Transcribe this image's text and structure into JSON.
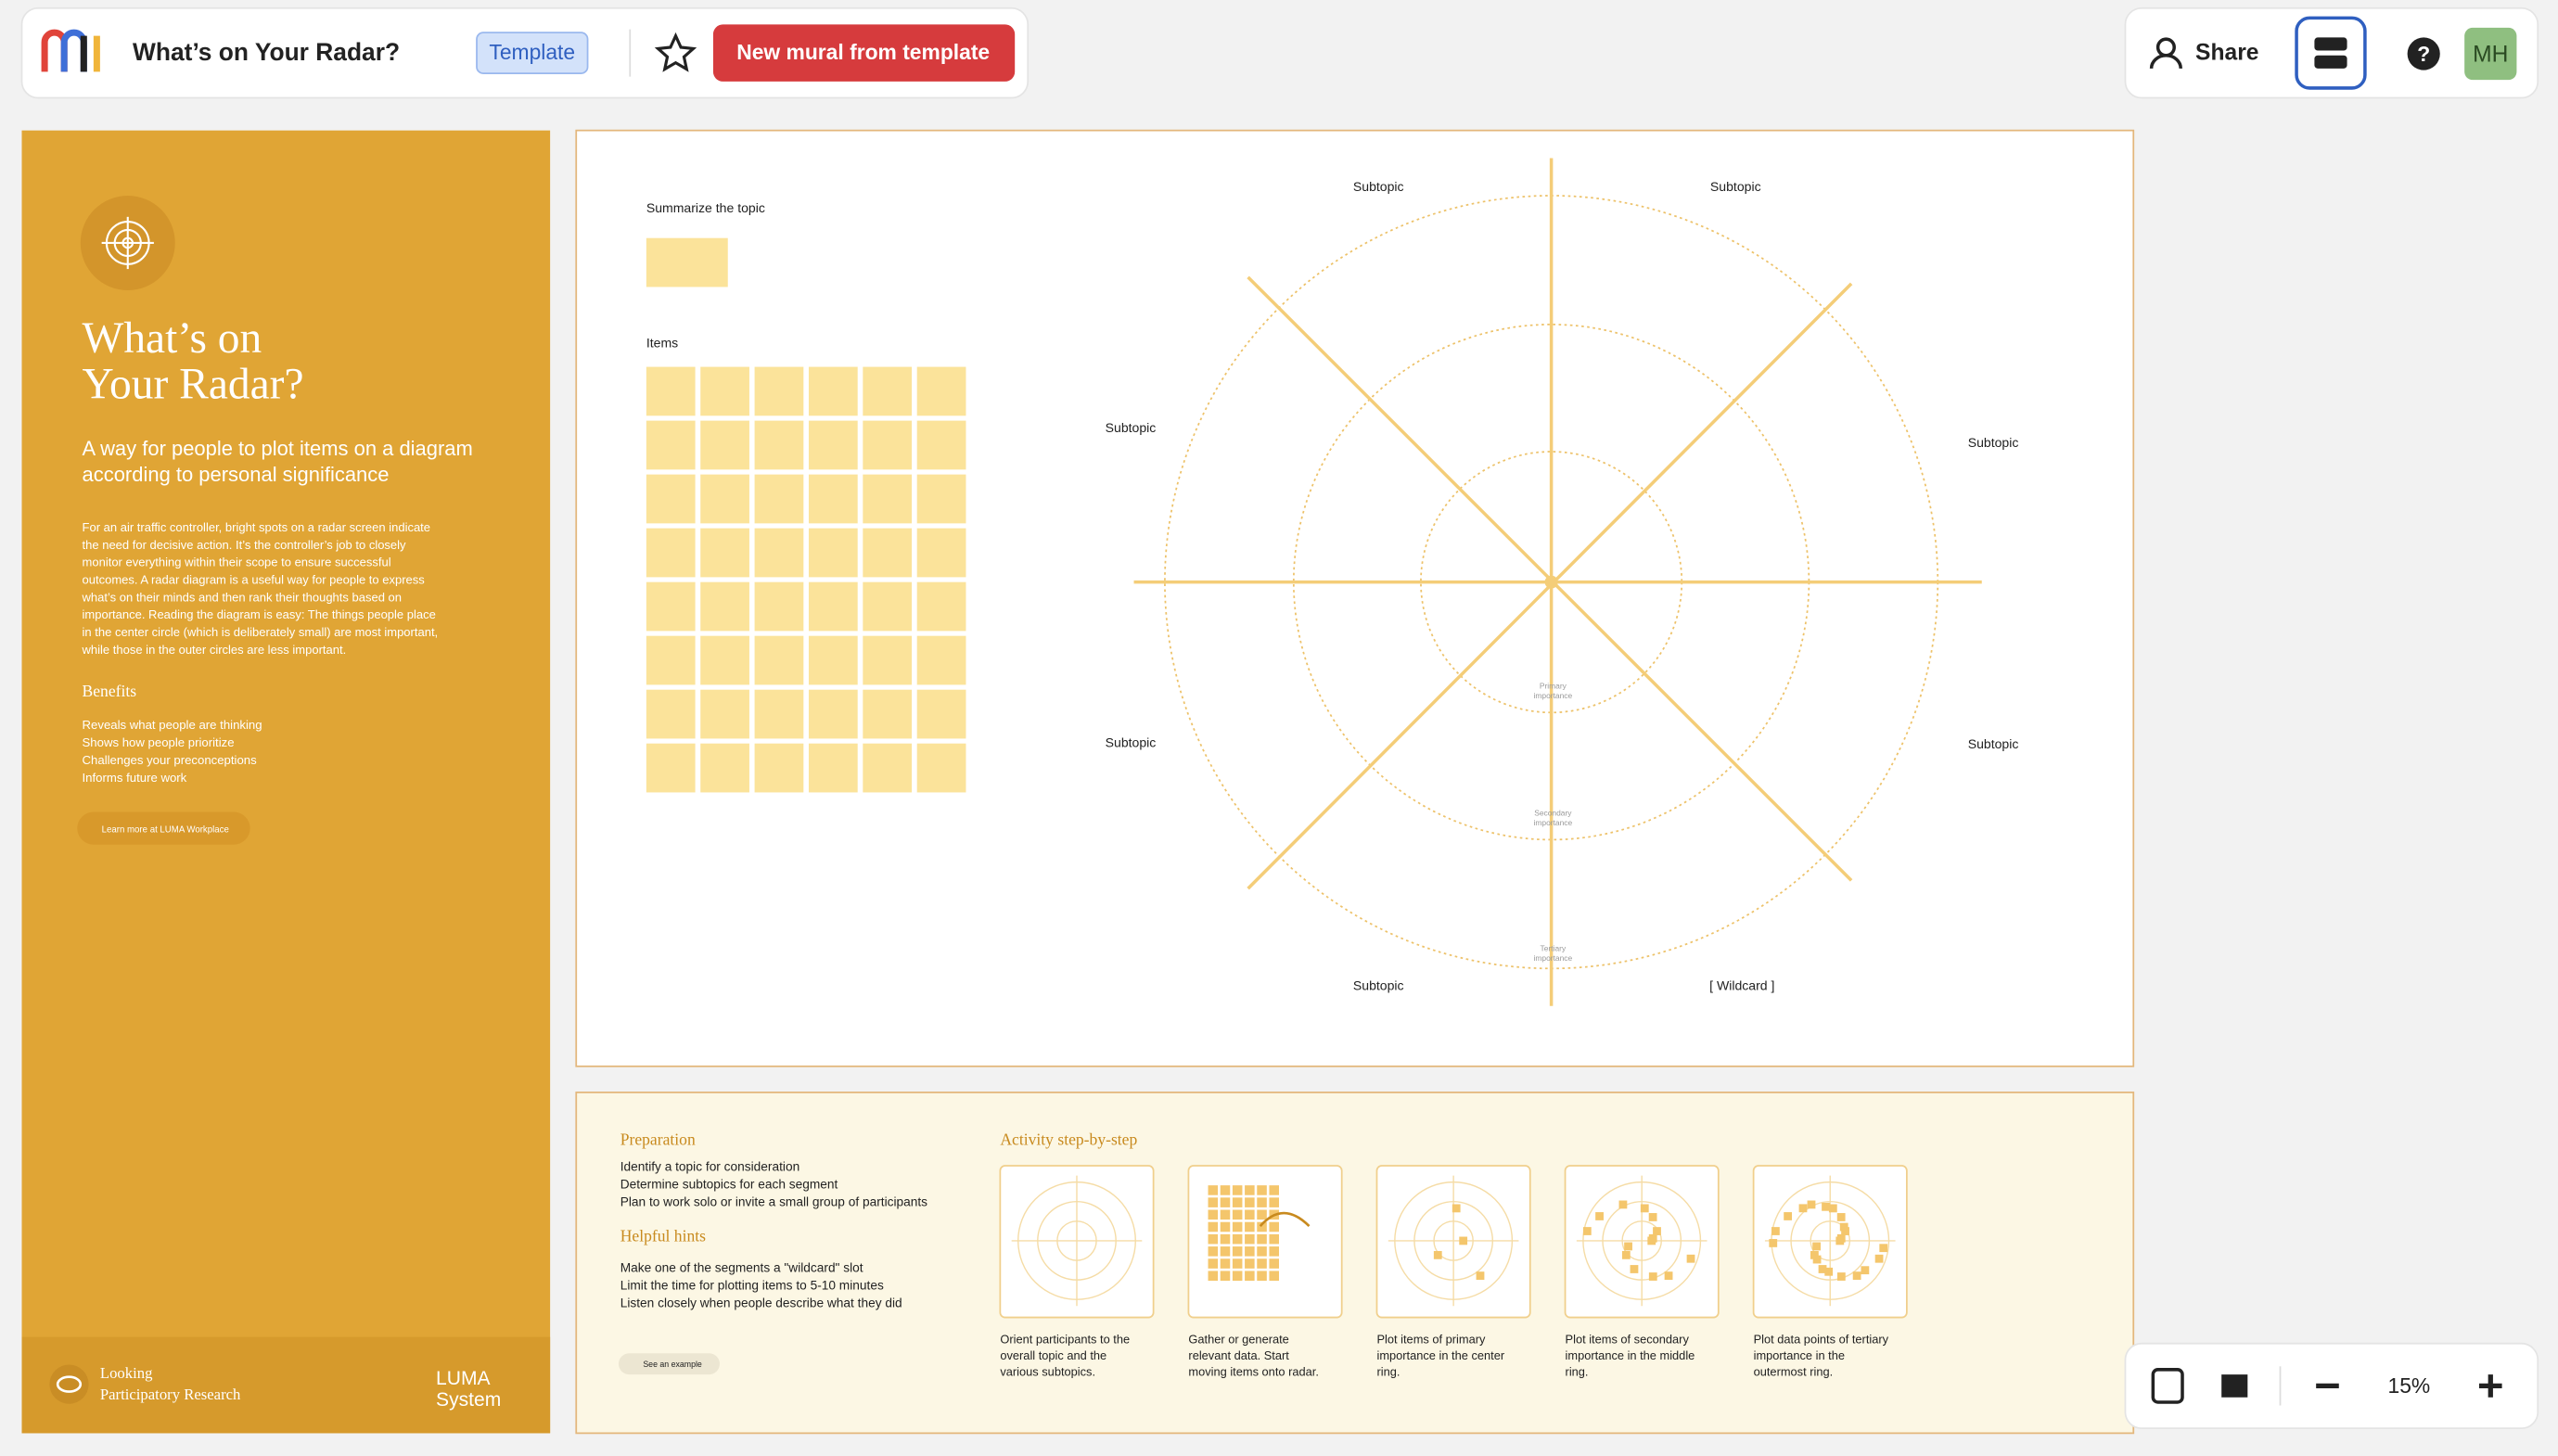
{
  "toolbar": {
    "title": "What’s on Your Radar?",
    "badge": "Template",
    "cta": "New mural from template",
    "share": "Share",
    "avatar": "MH",
    "zoom": "15%"
  },
  "sidebar": {
    "title_lines": [
      "What’s on",
      "Your Radar?"
    ],
    "subtitle_lines": [
      "A way for people to plot items on a diagram",
      "according to personal significance"
    ],
    "description_lines": [
      "For an air traffic controller, bright spots on a radar screen indicate",
      "the need for decisive action. It’s the controller’s job to closely",
      "monitor everything within their scope to ensure successful",
      "outcomes. A radar diagram is a useful way for people to express",
      "what’s on their minds and then rank their thoughts based on",
      "importance. Reading the diagram is easy: The things people place",
      "in the center circle (which is deliberately small) are most important,",
      "while those in the outer circles are less important."
    ],
    "benefits_heading": "Benefits",
    "benefits": [
      "Reveals what people are thinking",
      "Shows how people prioritize",
      "Challenges your preconceptions",
      "Informs future work"
    ],
    "link": "Learn more at LUMA Workplace",
    "footer_category": [
      "Looking",
      "Participatory Research"
    ],
    "brand": [
      "LUMA",
      "System"
    ]
  },
  "canvas": {
    "summarize_label": "Summarize the topic",
    "items_label": "Items",
    "subtopics": [
      "Subtopic",
      "Subtopic",
      "Subtopic",
      "Subtopic",
      "Subtopic",
      "Subtopic",
      "Subtopic",
      "[ Wildcard ]"
    ],
    "rings": [
      [
        "Primary",
        "importance"
      ],
      [
        "Secondary",
        "importance"
      ],
      [
        "Tertiary",
        "importance"
      ]
    ]
  },
  "instructions": {
    "preparation_heading": "Preparation",
    "preparation": [
      "Identify a topic for consideration",
      "Determine subtopics for each segment",
      "Plan to work solo or invite a small group of participants"
    ],
    "hints_heading": "Helpful hints",
    "hints": [
      "Make one of the segments a \"wildcard\" slot",
      "Limit the time for plotting items to 5-10 minutes",
      "Listen closely when people describe what they did"
    ],
    "example_button": "See an example",
    "activity_heading": "Activity step-by-step",
    "steps": [
      [
        "Orient participants to the",
        "overall topic and the",
        "various subtopics."
      ],
      [
        "Gather or generate",
        "relevant data. Start",
        "moving items onto radar."
      ],
      [
        "Plot items of primary",
        "importance in the center",
        "ring."
      ],
      [
        "Plot items of secondary",
        "importance in the middle",
        "ring."
      ],
      [
        "Plot data points of tertiary",
        "importance in the",
        "outermost ring."
      ]
    ]
  }
}
